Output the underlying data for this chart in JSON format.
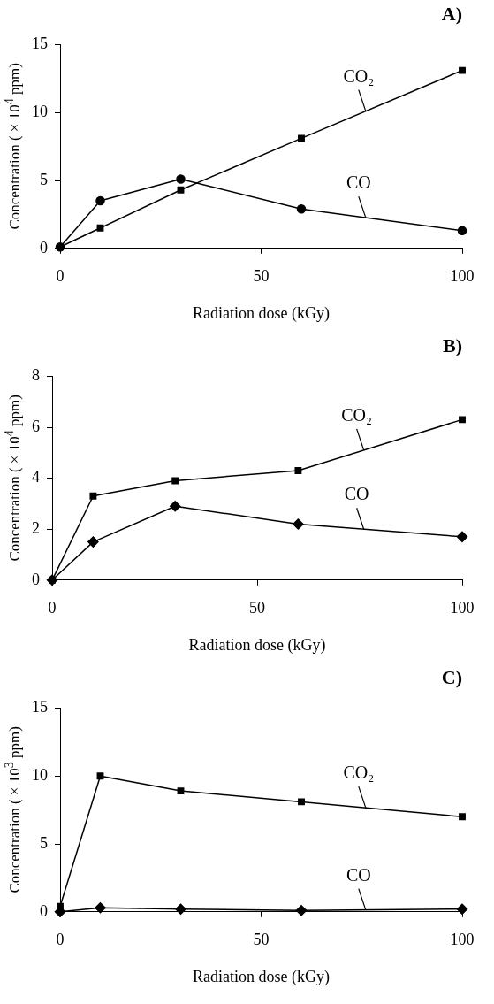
{
  "chart_data": [
    {
      "type": "line",
      "title": "A)",
      "xlabel": "Radiation dose (kGy)",
      "ylabel": "Concentration ( × 10$^{4}$ ppm)",
      "x": [
        0,
        10,
        30,
        60,
        100
      ],
      "xlim": [
        0,
        100
      ],
      "xticks": [
        0,
        50,
        100
      ],
      "ylim": [
        0,
        15
      ],
      "yticks": [
        0,
        5,
        10,
        15
      ],
      "grid": false,
      "legend": false,
      "line_style": "solid",
      "series": [
        {
          "name": "CO₂",
          "color": "#000000",
          "marker": "square",
          "values": [
            0.1,
            1.5,
            4.3,
            8.1,
            13.1
          ]
        },
        {
          "name": "CO",
          "color": "#000000",
          "marker": "circle",
          "values": [
            0.1,
            3.5,
            5.1,
            2.9,
            1.3
          ]
        }
      ]
    },
    {
      "type": "line",
      "title": "B)",
      "xlabel": "Radiation dose (kGy)",
      "ylabel": "Concentration ( × 10$^{4}$ ppm)",
      "x": [
        0,
        10,
        30,
        60,
        100
      ],
      "xlim": [
        0,
        100
      ],
      "xticks": [
        0,
        50,
        100
      ],
      "ylim": [
        0,
        8
      ],
      "yticks": [
        0,
        2,
        4,
        6,
        8
      ],
      "grid": false,
      "legend": false,
      "line_style": "solid",
      "series": [
        {
          "name": "CO₂",
          "color": "#000000",
          "marker": "square",
          "values": [
            0,
            3.3,
            3.9,
            4.3,
            6.3
          ]
        },
        {
          "name": "CO",
          "color": "#000000",
          "marker": "diamond",
          "values": [
            0,
            1.5,
            2.9,
            2.2,
            1.7
          ]
        }
      ]
    },
    {
      "type": "line",
      "title": "C)",
      "xlabel": "Radiation dose (kGy)",
      "ylabel": "Concentration ( × 10$^{3}$ ppm)",
      "x": [
        0,
        10,
        30,
        60,
        100
      ],
      "xlim": [
        0,
        100
      ],
      "xticks": [
        0,
        50,
        100
      ],
      "ylim": [
        0,
        15
      ],
      "yticks": [
        0,
        5,
        10,
        15
      ],
      "grid": false,
      "legend": false,
      "line_style": "solid",
      "series": [
        {
          "name": "CO₂",
          "color": "#000000",
          "marker": "square",
          "values": [
            0.4,
            10,
            8.9,
            8.1,
            7.0
          ]
        },
        {
          "name": "CO",
          "color": "#000000",
          "marker": "diamond",
          "values": [
            0,
            0.3,
            0.2,
            0.1,
            0.2
          ]
        }
      ]
    }
  ]
}
